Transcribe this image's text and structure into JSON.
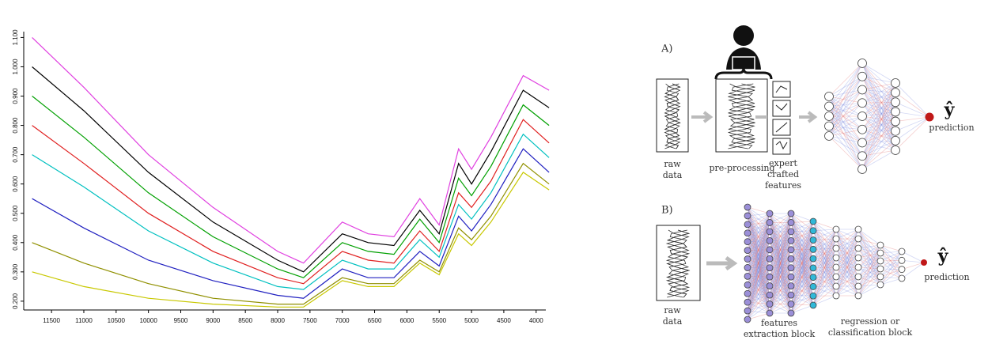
{
  "chart_data": {
    "type": "line",
    "x": [
      11800,
      11000,
      10000,
      9000,
      8000,
      7600,
      7000,
      6600,
      6200,
      5800,
      5500,
      5200,
      5000,
      4700,
      4200,
      3800
    ],
    "xlim": [
      11930,
      3850
    ],
    "xticks": [
      11500,
      11000,
      10500,
      10000,
      9500,
      9000,
      8500,
      8000,
      7500,
      7000,
      6500,
      6000,
      5500,
      5000,
      4500,
      4000
    ],
    "ylim": [
      0.17,
      1.12
    ],
    "yticks": [
      {
        "value": 0.2,
        "label": "0.200"
      },
      {
        "value": 0.3,
        "label": "0.300"
      },
      {
        "value": 0.4,
        "label": "0.400"
      },
      {
        "value": 0.5,
        "label": "0.500"
      },
      {
        "value": 0.6,
        "label": "0.600"
      },
      {
        "value": 0.7,
        "label": "0.700"
      },
      {
        "value": 0.8,
        "label": "0.800"
      },
      {
        "value": 0.9,
        "label": "0.900"
      },
      {
        "value": 1.0,
        "label": "1.000"
      },
      {
        "value": 1.1,
        "label": "1.100"
      }
    ],
    "series": [
      {
        "color": "#e040e0",
        "values": [
          1.1,
          0.93,
          0.7,
          0.52,
          0.37,
          0.33,
          0.47,
          0.43,
          0.42,
          0.55,
          0.46,
          0.72,
          0.65,
          0.76,
          0.97,
          0.92
        ]
      },
      {
        "color": "#000000",
        "values": [
          1.0,
          0.85,
          0.64,
          0.47,
          0.34,
          0.3,
          0.43,
          0.4,
          0.39,
          0.51,
          0.43,
          0.67,
          0.6,
          0.71,
          0.92,
          0.86
        ]
      },
      {
        "color": "#00a000",
        "values": [
          0.9,
          0.76,
          0.57,
          0.42,
          0.31,
          0.28,
          0.4,
          0.37,
          0.36,
          0.48,
          0.4,
          0.62,
          0.56,
          0.66,
          0.87,
          0.8
        ]
      },
      {
        "color": "#e02020",
        "values": [
          0.8,
          0.67,
          0.5,
          0.37,
          0.28,
          0.26,
          0.37,
          0.34,
          0.33,
          0.44,
          0.37,
          0.57,
          0.52,
          0.61,
          0.82,
          0.74
        ]
      },
      {
        "color": "#00c0c0",
        "values": [
          0.7,
          0.59,
          0.44,
          0.33,
          0.25,
          0.24,
          0.34,
          0.31,
          0.31,
          0.41,
          0.35,
          0.53,
          0.48,
          0.57,
          0.77,
          0.69
        ]
      },
      {
        "color": "#2020c0",
        "values": [
          0.55,
          0.45,
          0.34,
          0.27,
          0.22,
          0.21,
          0.31,
          0.28,
          0.28,
          0.37,
          0.32,
          0.49,
          0.44,
          0.53,
          0.72,
          0.64
        ]
      },
      {
        "color": "#909000",
        "values": [
          0.4,
          0.33,
          0.26,
          0.21,
          0.19,
          0.19,
          0.28,
          0.26,
          0.26,
          0.34,
          0.3,
          0.45,
          0.41,
          0.49,
          0.67,
          0.6
        ]
      },
      {
        "color": "#c8c800",
        "values": [
          0.3,
          0.25,
          0.21,
          0.19,
          0.18,
          0.18,
          0.27,
          0.25,
          0.25,
          0.33,
          0.29,
          0.43,
          0.39,
          0.47,
          0.64,
          0.58
        ]
      }
    ]
  },
  "diagram": {
    "a": {
      "label": "A)",
      "raw_data": [
        "raw",
        "data"
      ],
      "pre_processing": "pre-processing",
      "features": [
        "expert",
        "crafted",
        "features"
      ],
      "y_hat": "ŷ",
      "prediction": "prediction"
    },
    "b": {
      "label": "B)",
      "raw_data": [
        "raw",
        "data"
      ],
      "extraction": [
        "features",
        "extraction block"
      ],
      "regression": [
        "regression or",
        "classification block"
      ],
      "y_hat": "ŷ",
      "prediction": "prediction"
    }
  }
}
